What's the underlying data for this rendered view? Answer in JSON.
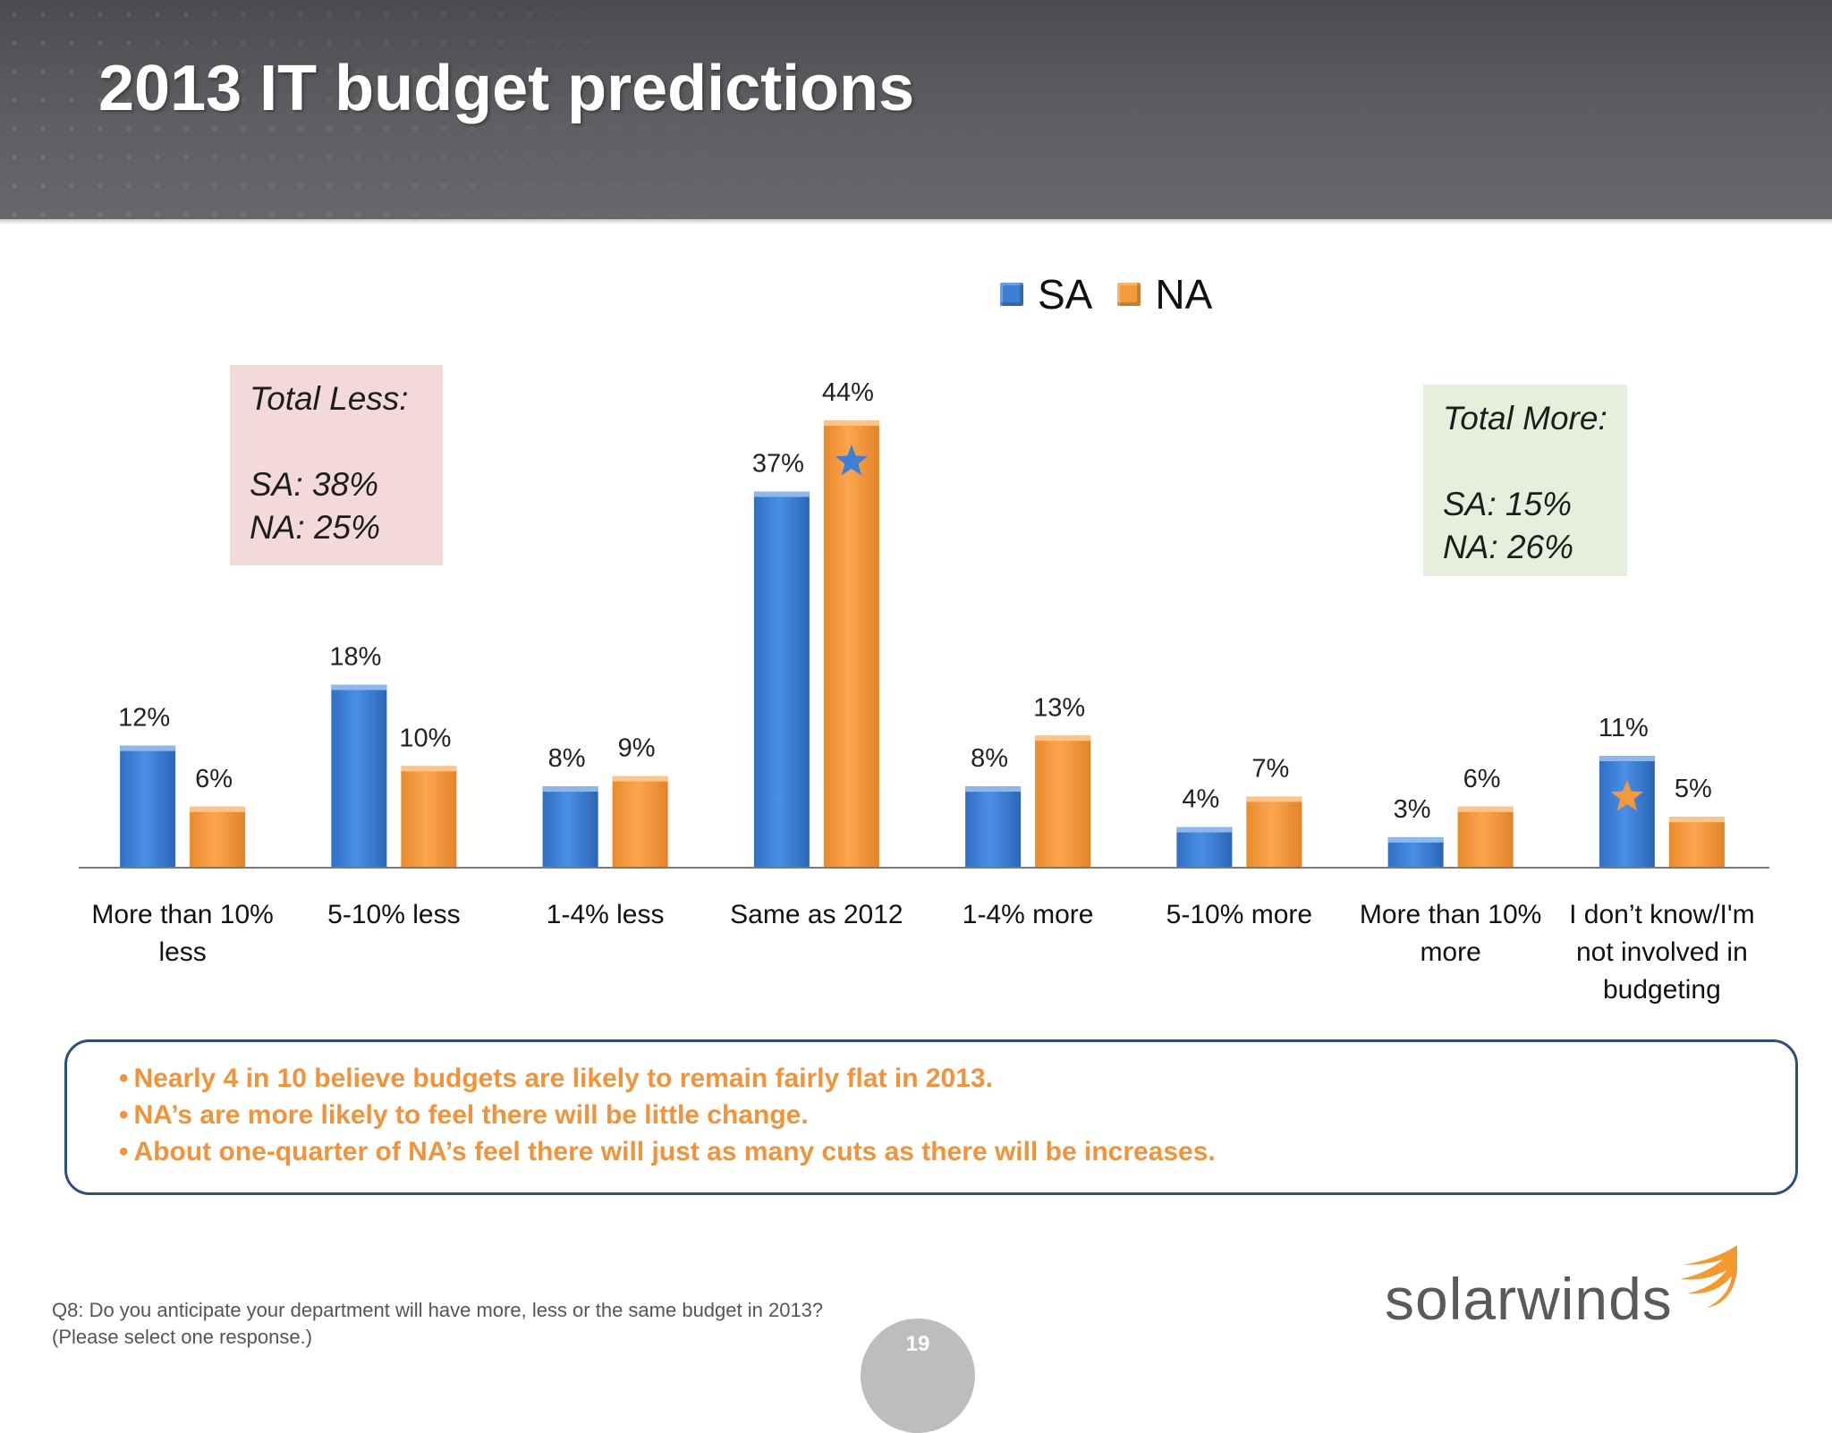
{
  "slide": {
    "title": "2013 IT budget predictions",
    "page_number": "19",
    "footnote": "Q8: Do you anticipate your department will have more, less or the same budget in 2013? (Please select one response.)"
  },
  "legend": [
    {
      "name": "SA",
      "color": "#3b7fd6"
    },
    {
      "name": "NA",
      "color": "#f59a3c"
    }
  ],
  "callouts": {
    "less": {
      "title": "Total Less:",
      "sa": "SA: 38%",
      "na": "NA:  25%"
    },
    "more": {
      "title": "Total More:",
      "sa": "SA: 15%",
      "na": "NA:  26%"
    }
  },
  "findings": [
    "Nearly 4 in 10 believe budgets are likely to remain fairly flat in 2013.",
    "NA’s are more likely to feel there will be little change.",
    "About one-quarter of NA’s feel there will just as many cuts as there will be increases."
  ],
  "logo": {
    "text": "solarwinds"
  },
  "chart_data": {
    "type": "bar",
    "categories": [
      "More than 10% less",
      "5-10% less",
      "1-4% less",
      "Same as 2012",
      "1-4% more",
      "5-10% more",
      "More than 10% more",
      "I don’t know/I'm not involved in budgeting"
    ],
    "series": [
      {
        "name": "SA",
        "values": [
          12,
          18,
          8,
          37,
          8,
          4,
          3,
          11
        ],
        "labels": [
          "12%",
          "18%",
          "8%",
          "37%",
          "8%",
          "4%",
          "3%",
          "11%"
        ]
      },
      {
        "name": "NA",
        "values": [
          6,
          10,
          9,
          44,
          13,
          7,
          6,
          5
        ],
        "labels": [
          "6%",
          "10%",
          "9%",
          "44%",
          "13%",
          "7%",
          "6%",
          "5%"
        ]
      }
    ],
    "ylim": [
      0,
      44
    ],
    "legend_position": "top",
    "grid": false,
    "annotations": [
      {
        "type": "star",
        "category_index": 3,
        "series": "NA",
        "color": "#3b7fd6"
      },
      {
        "type": "star",
        "category_index": 7,
        "series": "SA",
        "color": "#f59a3c"
      }
    ]
  }
}
